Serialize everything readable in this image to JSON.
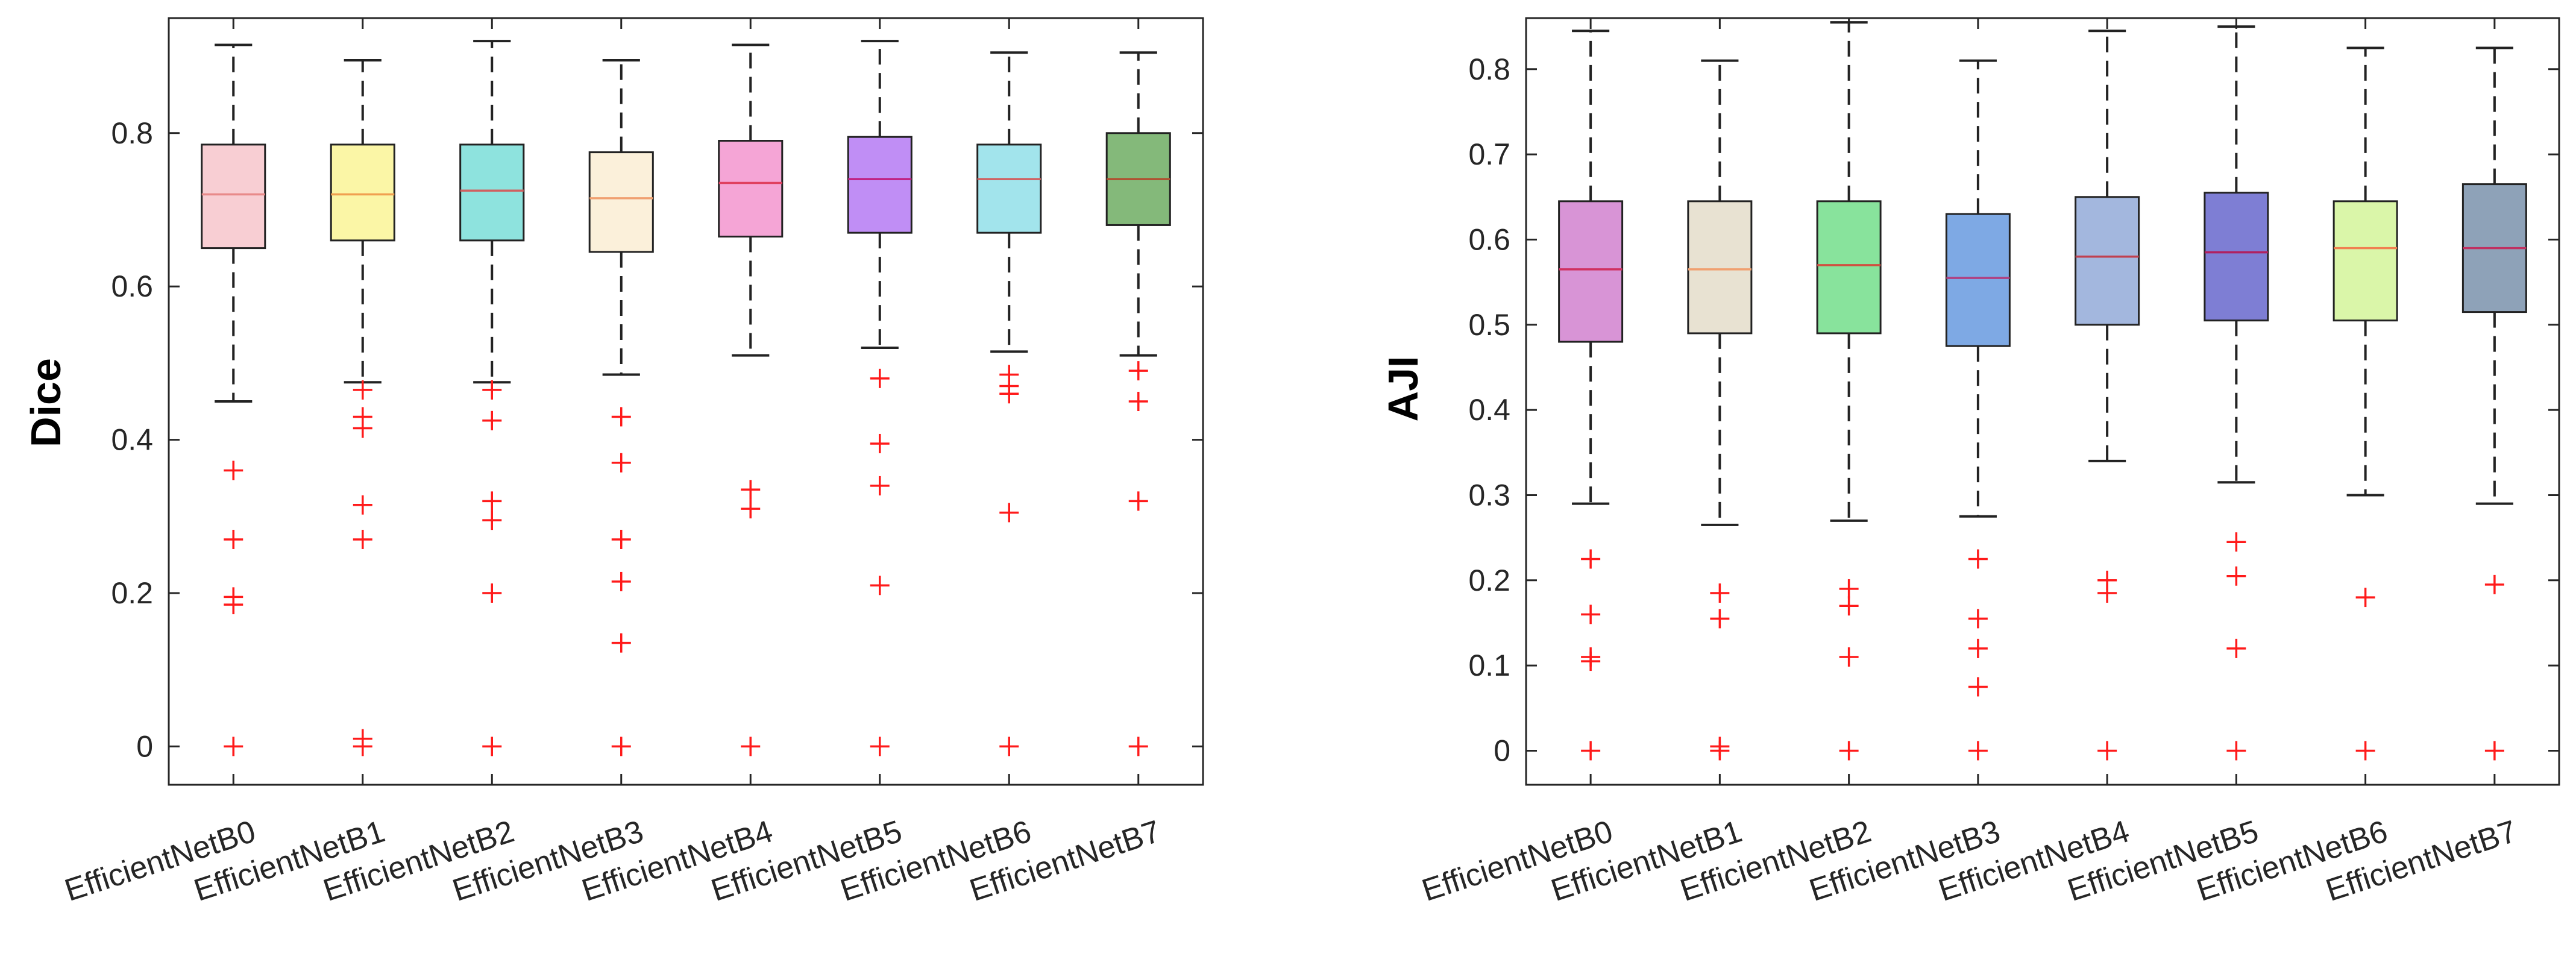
{
  "chart_data": [
    {
      "type": "box",
      "id": "dice",
      "title": "",
      "xlabel": "",
      "ylabel": "Dice",
      "ylim": [
        -0.05,
        0.95
      ],
      "yticks": [
        0,
        0.2,
        0.4,
        0.6,
        0.8
      ],
      "ytick_labels": [
        "0",
        "0.2",
        "0.4",
        "0.6",
        "0.8"
      ],
      "categories": [
        "EfficientNetB0",
        "EfficientNetB1",
        "EfficientNetB2",
        "EfficientNetB3",
        "EfficientNetB4",
        "EfficientNetB5",
        "EfficientNetB6",
        "EfficientNetB7"
      ],
      "series": [
        {
          "name": "EfficientNetB0",
          "color": "#f8ced3",
          "median_color": "#e88a8a",
          "whisker_low": 0.45,
          "q1": 0.65,
          "median": 0.72,
          "q3": 0.785,
          "whisker_high": 0.915,
          "outliers": [
            0.36,
            0.27,
            0.195,
            0.185,
            0.0
          ]
        },
        {
          "name": "EfficientNetB1",
          "color": "#fbf6a6",
          "median_color": "#f0a050",
          "whisker_low": 0.475,
          "q1": 0.66,
          "median": 0.72,
          "q3": 0.785,
          "whisker_high": 0.895,
          "outliers": [
            0.465,
            0.43,
            0.415,
            0.315,
            0.27,
            0.01,
            0.0
          ]
        },
        {
          "name": "EfficientNetB2",
          "color": "#8ee3de",
          "median_color": "#d06060",
          "whisker_low": 0.475,
          "q1": 0.66,
          "median": 0.725,
          "q3": 0.785,
          "whisker_high": 0.92,
          "outliers": [
            0.465,
            0.425,
            0.32,
            0.295,
            0.2,
            0.0
          ]
        },
        {
          "name": "EfficientNetB3",
          "color": "#fbf0da",
          "median_color": "#f0a070",
          "whisker_low": 0.485,
          "q1": 0.645,
          "median": 0.715,
          "q3": 0.775,
          "whisker_high": 0.895,
          "outliers": [
            0.43,
            0.37,
            0.27,
            0.215,
            0.135,
            0.0
          ]
        },
        {
          "name": "EfficientNetB4",
          "color": "#f5a5d6",
          "median_color": "#e04060",
          "whisker_low": 0.51,
          "q1": 0.665,
          "median": 0.735,
          "q3": 0.79,
          "whisker_high": 0.915,
          "outliers": [
            0.335,
            0.31,
            0.0
          ]
        },
        {
          "name": "EfficientNetB5",
          "color": "#c08ef5",
          "median_color": "#c02080",
          "whisker_low": 0.52,
          "q1": 0.67,
          "median": 0.74,
          "q3": 0.795,
          "whisker_high": 0.92,
          "outliers": [
            0.48,
            0.395,
            0.34,
            0.21,
            0.0
          ]
        },
        {
          "name": "EfficientNetB6",
          "color": "#a2e4ec",
          "median_color": "#d06060",
          "whisker_low": 0.515,
          "q1": 0.67,
          "median": 0.74,
          "q3": 0.785,
          "whisker_high": 0.905,
          "outliers": [
            0.485,
            0.47,
            0.46,
            0.305,
            0.0
          ]
        },
        {
          "name": "EfficientNetB7",
          "color": "#84b97a",
          "median_color": "#b05030",
          "whisker_low": 0.51,
          "q1": 0.68,
          "median": 0.74,
          "q3": 0.8,
          "whisker_high": 0.905,
          "outliers": [
            0.49,
            0.45,
            0.32,
            0.0
          ]
        }
      ]
    },
    {
      "type": "box",
      "id": "aji",
      "title": "",
      "xlabel": "",
      "ylabel": "AJI",
      "ylim": [
        -0.04,
        0.86
      ],
      "yticks": [
        0,
        0.1,
        0.2,
        0.3,
        0.4,
        0.5,
        0.6,
        0.7,
        0.8
      ],
      "ytick_labels": [
        "0",
        "0.1",
        "0.2",
        "0.3",
        "0.4",
        "0.5",
        "0.6",
        "0.7",
        "0.8"
      ],
      "categories": [
        "EfficientNetB0",
        "EfficientNetB1",
        "EfficientNetB2",
        "EfficientNetB3",
        "EfficientNetB4",
        "EfficientNetB5",
        "EfficientNetB6",
        "EfficientNetB7"
      ],
      "series": [
        {
          "name": "EfficientNetB0",
          "color": "#d894d6",
          "median_color": "#d03060",
          "whisker_low": 0.29,
          "q1": 0.48,
          "median": 0.565,
          "q3": 0.645,
          "whisker_high": 0.845,
          "outliers": [
            0.225,
            0.16,
            0.11,
            0.105,
            0.0
          ]
        },
        {
          "name": "EfficientNetB1",
          "color": "#e8e2d2",
          "median_color": "#f0a070",
          "whisker_low": 0.265,
          "q1": 0.49,
          "median": 0.565,
          "q3": 0.645,
          "whisker_high": 0.81,
          "outliers": [
            0.185,
            0.155,
            0.005,
            0.0
          ]
        },
        {
          "name": "EfficientNetB2",
          "color": "#88e39c",
          "median_color": "#d05040",
          "whisker_low": 0.27,
          "q1": 0.49,
          "median": 0.57,
          "q3": 0.645,
          "whisker_high": 0.855,
          "outliers": [
            0.19,
            0.17,
            0.11,
            0.0
          ]
        },
        {
          "name": "EfficientNetB3",
          "color": "#7ea9e4",
          "median_color": "#b04080",
          "whisker_low": 0.275,
          "q1": 0.475,
          "median": 0.555,
          "q3": 0.63,
          "whisker_high": 0.81,
          "outliers": [
            0.225,
            0.155,
            0.12,
            0.075,
            0.0
          ]
        },
        {
          "name": "EfficientNetB4",
          "color": "#a3b7de",
          "median_color": "#c04050",
          "whisker_low": 0.34,
          "q1": 0.5,
          "median": 0.58,
          "q3": 0.65,
          "whisker_high": 0.845,
          "outliers": [
            0.2,
            0.185,
            0.0
          ]
        },
        {
          "name": "EfficientNetB5",
          "color": "#7e7ed4",
          "median_color": "#b02060",
          "whisker_low": 0.315,
          "q1": 0.505,
          "median": 0.585,
          "q3": 0.655,
          "whisker_high": 0.85,
          "outliers": [
            0.245,
            0.205,
            0.12,
            0.0
          ]
        },
        {
          "name": "EfficientNetB6",
          "color": "#daf6a9",
          "median_color": "#f08050",
          "whisker_low": 0.3,
          "q1": 0.505,
          "median": 0.59,
          "q3": 0.645,
          "whisker_high": 0.825,
          "outliers": [
            0.18,
            0.0
          ]
        },
        {
          "name": "EfficientNetB7",
          "color": "#8ea2b8",
          "median_color": "#c03060",
          "whisker_low": 0.29,
          "q1": 0.515,
          "median": 0.59,
          "q3": 0.665,
          "whisker_high": 0.825,
          "outliers": [
            0.195,
            0.0
          ]
        }
      ]
    }
  ]
}
